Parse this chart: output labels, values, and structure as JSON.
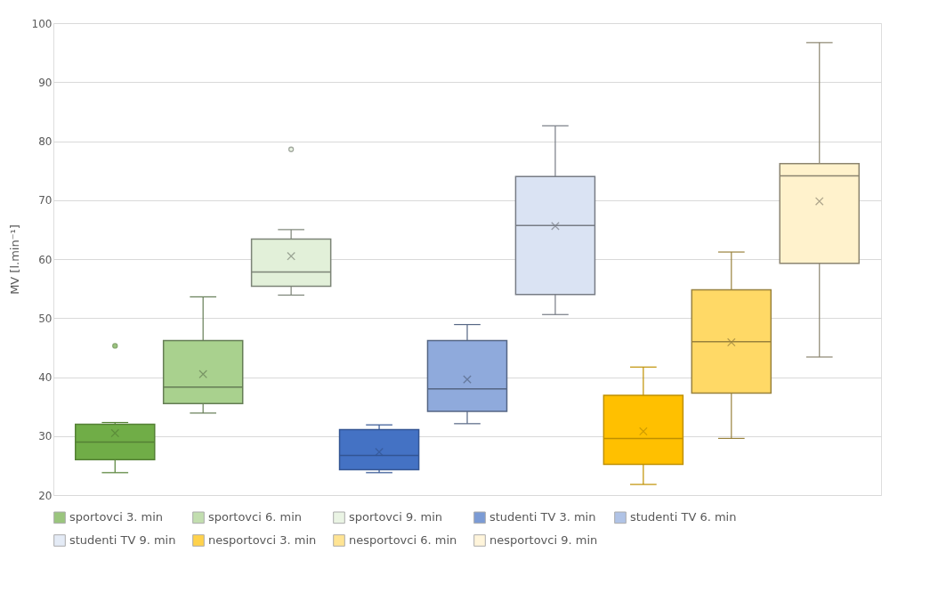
{
  "chart_data": {
    "type": "box",
    "ylabel": "MV [l.min⁻¹]",
    "categories": [
      null
    ],
    "ylim": [
      20,
      100
    ],
    "yticks": [
      20,
      30,
      40,
      50,
      60,
      70,
      80,
      90,
      100
    ],
    "grid": "y",
    "legend": "bottom",
    "tick_labels": "y",
    "series": [
      {
        "name": "sportovci 3. min",
        "color": "#70ad47",
        "boxes": [
          {
            "low": 23.8,
            "q1": 26.0,
            "median": 29.0,
            "q3": 32.0,
            "high": 32.3,
            "mean": 30.5,
            "outliers": [
              45.3
            ]
          }
        ]
      },
      {
        "name": "sportovci 6. min",
        "color": "#a9d18e",
        "boxes": [
          {
            "low": 33.9,
            "q1": 35.5,
            "median": 38.3,
            "q3": 46.2,
            "high": 53.6,
            "mean": 40.5
          }
        ]
      },
      {
        "name": "sportovci 9. min",
        "color": "#e2f0d9",
        "boxes": [
          {
            "low": 53.9,
            "q1": 55.4,
            "median": 57.8,
            "q3": 63.4,
            "high": 65.0,
            "mean": 60.5,
            "outliers": [
              78.6
            ]
          }
        ]
      },
      {
        "name": "studenti TV 3. min",
        "color": "#4472c4",
        "boxes": [
          {
            "low": 23.8,
            "q1": 24.3,
            "median": 26.7,
            "q3": 31.1,
            "high": 31.9,
            "mean": 27.3
          }
        ]
      },
      {
        "name": "studenti TV 6. min",
        "color": "#8faadc",
        "boxes": [
          {
            "low": 32.1,
            "q1": 34.2,
            "median": 38.0,
            "q3": 46.2,
            "high": 48.9,
            "mean": 39.6
          }
        ]
      },
      {
        "name": "studenti TV 9. min",
        "color": "#dae3f3",
        "boxes": [
          {
            "low": 50.6,
            "q1": 54.0,
            "median": 65.7,
            "q3": 74.0,
            "high": 82.6,
            "mean": 65.6
          }
        ]
      },
      {
        "name": "nesportovci 3. min",
        "color": "#ffc000",
        "boxes": [
          {
            "low": 21.8,
            "q1": 25.2,
            "median": 29.6,
            "q3": 36.9,
            "high": 41.7,
            "mean": 30.8
          }
        ]
      },
      {
        "name": "nesportovci 6. min",
        "color": "#ffd966",
        "boxes": [
          {
            "low": 29.6,
            "q1": 37.3,
            "median": 46.0,
            "q3": 54.8,
            "high": 61.2,
            "mean": 45.9
          }
        ]
      },
      {
        "name": "nesportovci 9. min",
        "color": "#fff2cc",
        "boxes": [
          {
            "low": 43.4,
            "q1": 59.3,
            "median": 74.1,
            "q3": 76.2,
            "high": 96.7,
            "mean": 69.8
          }
        ]
      }
    ]
  }
}
